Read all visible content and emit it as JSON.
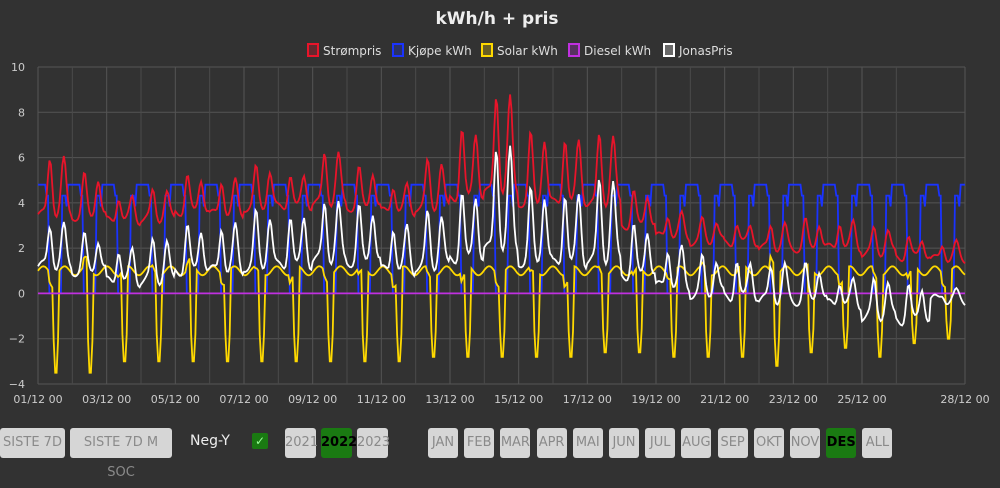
{
  "chart_data": {
    "type": "line",
    "title": "kWh/h + pris",
    "legend": [
      {
        "name": "Strømpris",
        "color": "#e8142a"
      },
      {
        "name": "Kjøpe kWh",
        "color": "#1a33ff"
      },
      {
        "name": "Solar kWh",
        "color": "#ffd900"
      },
      {
        "name": "Diesel kWh",
        "color": "#c030e0"
      },
      {
        "name": "JonasPris",
        "color": "#ffffff"
      }
    ],
    "legend_position": "top",
    "ylim": [
      -4,
      10
    ],
    "yticks": [
      "10",
      "8",
      "6",
      "4",
      "2",
      "0",
      "−2",
      "−4"
    ],
    "xticks": [
      "01/12 00",
      "03/12 00",
      "05/12 00",
      "07/12 00",
      "09/12 00",
      "11/12 00",
      "13/12 00",
      "15/12 00",
      "17/12 00",
      "19/12 00",
      "21/12 00",
      "23/12 00",
      "25/12 00",
      "28/12 00"
    ],
    "days": 27,
    "strompris_daily_peak": [
      6,
      5.2,
      4.3,
      4.5,
      5.2,
      5,
      5.5,
      5.3,
      6.2,
      5.5,
      4.8,
      5.8,
      7.3,
      8.8,
      7,
      6.9,
      7,
      4.5,
      3.5,
      3.2,
      3.1,
      3,
      3.2,
      3.2,
      2.8,
      2.5,
      2.2
    ],
    "strompris_daily_base": [
      3.5,
      3.4,
      3.2,
      3.3,
      3.6,
      3.5,
      3.8,
      3.8,
      4,
      3.8,
      3.6,
      3.8,
      4.2,
      4.5,
      4,
      4,
      4,
      3,
      2.5,
      2.3,
      2.2,
      2,
      2,
      2,
      1.8,
      1.6,
      1.5
    ],
    "jonaspris_daily_peak": [
      3,
      2.5,
      2,
      2.3,
      3,
      3,
      3.5,
      3.5,
      4,
      3.8,
      3,
      3.5,
      4.5,
      6.5,
      4.5,
      4.5,
      5,
      3,
      2,
      1.5,
      1.5,
      1.2,
      1.2,
      0.6,
      0.5,
      0.4,
      0
    ],
    "jonaspris_daily_base": [
      1.2,
      1,
      0.5,
      0.6,
      1,
      1,
      1.2,
      1.2,
      1.5,
      1.4,
      1,
      1.2,
      1.5,
      2,
      1.4,
      1.3,
      1.5,
      0.8,
      0.3,
      0,
      -0.2,
      -0.3,
      -0.3,
      -0.5,
      -1,
      -1.2,
      -0.3
    ],
    "kjope_night": 4.8,
    "solar_daily_min": [
      -3.5,
      -3.5,
      -3,
      -3,
      -3,
      -3,
      -3,
      -3,
      -3,
      -3,
      -3,
      -2.8,
      -2.8,
      -2.8,
      -2.8,
      -2.8,
      -2.6,
      -2.6,
      -2.8,
      -2.8,
      -2.8,
      -3.2,
      -2.6,
      -2.4,
      -2.8,
      -2.2,
      -2
    ],
    "solar_daily_peak": [
      1.2,
      2.5,
      2.2,
      2,
      2.5,
      1.5,
      1.5,
      1.5,
      1.5,
      1.3,
      1.3,
      1.3,
      1.3,
      1.3,
      1.3,
      1.3,
      2,
      1.5,
      2,
      2,
      2.3,
      3.3,
      1.8,
      1.5,
      1.3,
      1.5,
      1.3
    ],
    "diesel": 0
  },
  "controls": {
    "range_buttons": [
      "SISTE 7D",
      "SISTE 7D M SOC"
    ],
    "negy_label": "Neg-Y",
    "negy_checked": "✓",
    "years": [
      "2021",
      "2022",
      "2023"
    ],
    "active_year": "2022",
    "months": [
      "JAN",
      "FEB",
      "MAR",
      "APR",
      "MAI",
      "JUN",
      "JUL",
      "AUG",
      "SEP",
      "OKT",
      "NOV",
      "DES",
      "ALL"
    ],
    "active_month": "DES"
  }
}
